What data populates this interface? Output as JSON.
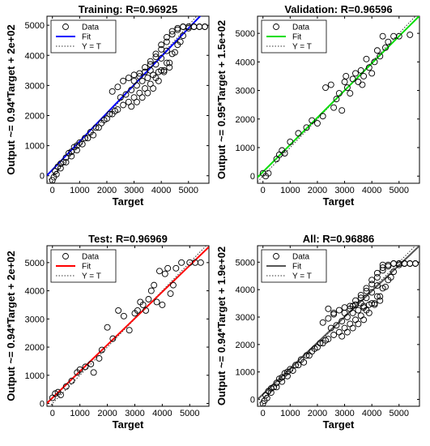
{
  "chart_data": [
    {
      "type": "scatter",
      "title": "Training: R=0.96925",
      "xlabel": "Target",
      "ylabel": "Output ~= 0.94*Target + 2e+02",
      "xlim": [
        -200,
        5750
      ],
      "ylim": [
        -250,
        5300
      ],
      "xticks": [
        0,
        1000,
        2000,
        3000,
        4000,
        5000
      ],
      "yticks": [
        0,
        1000,
        2000,
        3000,
        4000,
        5000
      ],
      "legend": {
        "position": "top-left",
        "entries": [
          "Data",
          "Fit",
          "Y = T"
        ]
      },
      "fit_color": "#0000ff",
      "fit": {
        "slope": 0.94,
        "intercept": 200
      },
      "x": [
        0,
        100,
        200,
        300,
        400,
        500,
        600,
        700,
        800,
        900,
        1000,
        1200,
        1400,
        1600,
        1800,
        2000,
        2200,
        2400,
        2600,
        2800,
        3000,
        3200,
        3400,
        3600,
        3800,
        4000,
        4200,
        4400,
        4600,
        4800,
        5000,
        5200,
        5400,
        5600,
        2200,
        2400,
        2600,
        2800,
        3000,
        3200,
        3400,
        3600,
        3800,
        4000,
        4200,
        2500,
        2700,
        2900,
        3100,
        3300,
        3500,
        3700,
        3900,
        4100,
        4300,
        2900,
        3100,
        3300,
        3500,
        3700,
        3900,
        4100,
        4300,
        4500,
        4700,
        3400,
        3600,
        3800,
        4000,
        4200,
        4400,
        4600,
        4800,
        5000,
        5200,
        1700,
        1900,
        2100,
        2300,
        1500,
        1300,
        1100,
        900,
        700,
        500,
        300,
        150,
        50,
        3000,
        3200,
        3400,
        3600,
        3800,
        4000,
        4200,
        4400,
        4600,
        4800,
        5000,
        5200,
        5400,
        5600
      ],
      "y": [
        -150,
        150,
        300,
        400,
        450,
        600,
        750,
        800,
        950,
        1000,
        1100,
        1250,
        1450,
        1600,
        1750,
        1900,
        2050,
        2200,
        2350,
        2450,
        2600,
        2750,
        2900,
        3050,
        3250,
        3500,
        3750,
        4050,
        4350,
        4650,
        4900,
        4950,
        4950,
        4950,
        2800,
        2950,
        3150,
        3250,
        3350,
        3400,
        3450,
        3500,
        3700,
        3900,
        4150,
        2600,
        2700,
        2850,
        3000,
        3150,
        3250,
        3350,
        3450,
        3500,
        3600,
        2300,
        2450,
        2600,
        2750,
        2900,
        3150,
        3450,
        3750,
        4100,
        4450,
        3600,
        3800,
        4050,
        4350,
        4600,
        4800,
        4900,
        4950,
        4950,
        4950,
        1600,
        1850,
        2050,
        2150,
        1350,
        1250,
        1050,
        850,
        650,
        450,
        250,
        50,
        -50,
        3150,
        3300,
        3450,
        3700,
        3950,
        4200,
        4450,
        4700,
        4850,
        4950,
        4950,
        4950,
        4950,
        4950
      ]
    },
    {
      "type": "scatter",
      "title": "Validation: R=0.96596",
      "xlabel": "Target",
      "ylabel": "Output ~= 0.95*Target + 1.5e+02",
      "xlim": [
        -200,
        5750
      ],
      "ylim": [
        -250,
        5600
      ],
      "xticks": [
        0,
        1000,
        2000,
        3000,
        4000,
        5000
      ],
      "yticks": [
        0,
        1000,
        2000,
        3000,
        4000,
        5000
      ],
      "legend": {
        "position": "top-left",
        "entries": [
          "Data",
          "Fit",
          "Y = T"
        ]
      },
      "fit_color": "#00dd00",
      "fit": {
        "slope": 0.95,
        "intercept": 150
      },
      "x": [
        0,
        100,
        200,
        500,
        600,
        700,
        800,
        1000,
        1300,
        1600,
        1800,
        2000,
        2200,
        2300,
        2500,
        2600,
        2700,
        2800,
        2900,
        3000,
        3050,
        3100,
        3200,
        3300,
        3400,
        3500,
        3600,
        3650,
        3700,
        3800,
        3900,
        4000,
        4100,
        4200,
        4300,
        4400,
        4500,
        4600,
        4800,
        5000,
        5400
      ],
      "y": [
        100,
        0,
        100,
        600,
        750,
        900,
        800,
        1200,
        1500,
        1700,
        1950,
        1850,
        2100,
        3100,
        3200,
        2400,
        2700,
        2900,
        2300,
        3300,
        3500,
        3100,
        2900,
        3400,
        3600,
        3300,
        3700,
        3200,
        3500,
        4100,
        3800,
        3600,
        4000,
        4400,
        4200,
        4900,
        4500,
        4700,
        4900,
        4900,
        4950
      ]
    },
    {
      "type": "scatter",
      "title": "Test: R=0.96969",
      "xlabel": "Target",
      "ylabel": "Output ~= 0.94*Target + 2e+02",
      "xlim": [
        -200,
        5700
      ],
      "ylim": [
        -100,
        5600
      ],
      "xticks": [
        0,
        1000,
        2000,
        3000,
        4000,
        5000
      ],
      "yticks": [
        0,
        1000,
        2000,
        3000,
        4000,
        5000
      ],
      "legend": {
        "position": "top-left",
        "entries": [
          "Data",
          "Fit",
          "Y = T"
        ]
      },
      "fit_color": "#ff0000",
      "fit": {
        "slope": 0.94,
        "intercept": 200
      },
      "x": [
        0,
        100,
        200,
        300,
        500,
        700,
        900,
        1000,
        1200,
        1400,
        1500,
        1700,
        1800,
        2000,
        2200,
        2400,
        2600,
        2800,
        3000,
        3100,
        3200,
        3300,
        3400,
        3500,
        3600,
        3700,
        3800,
        3900,
        4000,
        4100,
        4200,
        4300,
        4400,
        4500,
        4700,
        5000,
        5200,
        5400
      ],
      "y": [
        200,
        350,
        400,
        300,
        600,
        800,
        1100,
        1200,
        1300,
        1400,
        1100,
        1600,
        1900,
        2700,
        2300,
        3300,
        3100,
        2600,
        3200,
        3300,
        3600,
        3500,
        3300,
        3700,
        4000,
        4200,
        3600,
        4700,
        3500,
        4600,
        4800,
        3900,
        4200,
        4800,
        5000,
        5000,
        5000,
        5000
      ]
    },
    {
      "type": "scatter",
      "title": "All: R=0.96886",
      "xlabel": "Target",
      "ylabel": "Output ~= 0.94*Target + 1.9e+02",
      "xlim": [
        -200,
        5750
      ],
      "ylim": [
        -250,
        5600
      ],
      "xticks": [
        0,
        1000,
        2000,
        3000,
        4000,
        5000
      ],
      "yticks": [
        0,
        1000,
        2000,
        3000,
        4000,
        5000
      ],
      "legend": {
        "position": "top-left",
        "entries": [
          "Data",
          "Fit",
          "Y = T"
        ]
      },
      "fit_color": "#555555",
      "fit": {
        "slope": 0.94,
        "intercept": 190
      },
      "x": [
        0,
        100,
        200,
        300,
        400,
        500,
        600,
        700,
        800,
        900,
        1000,
        1200,
        1400,
        1600,
        1800,
        2000,
        2200,
        2400,
        2600,
        2800,
        3000,
        3200,
        3400,
        3600,
        3800,
        4000,
        4200,
        4400,
        4600,
        4800,
        5000,
        5200,
        5400,
        5600,
        2200,
        2400,
        2600,
        2800,
        3000,
        3200,
        3400,
        3600,
        3800,
        4000,
        4200,
        2500,
        2700,
        2900,
        3100,
        3300,
        3500,
        3700,
        3900,
        4100,
        4300,
        2900,
        3100,
        3300,
        3500,
        3700,
        3900,
        4100,
        4300,
        4500,
        4700,
        3400,
        3600,
        3800,
        4000,
        4200,
        4400,
        4600,
        4800,
        5000,
        5200,
        1700,
        1900,
        2100,
        2300,
        1500,
        1300,
        1100,
        900,
        700,
        500,
        300,
        150,
        50,
        3000,
        3200,
        3400,
        3600,
        3800,
        4000,
        4200,
        4400,
        4600,
        4800,
        5000,
        5200,
        5400,
        5600,
        2400,
        2600,
        3300,
        3700,
        4400
      ],
      "y": [
        -150,
        150,
        300,
        400,
        450,
        600,
        750,
        800,
        950,
        1000,
        1100,
        1250,
        1450,
        1600,
        1750,
        1900,
        2050,
        2200,
        2350,
        2450,
        2600,
        2750,
        2900,
        3050,
        3250,
        3500,
        3750,
        4050,
        4350,
        4650,
        4900,
        4950,
        4950,
        4950,
        2800,
        2950,
        3150,
        3250,
        3350,
        3400,
        3450,
        3500,
        3700,
        3900,
        4150,
        2600,
        2700,
        2850,
        3000,
        3150,
        3250,
        3350,
        3450,
        3500,
        3600,
        2300,
        2450,
        2600,
        2750,
        2900,
        3150,
        3450,
        3750,
        4100,
        4450,
        3600,
        3800,
        4050,
        4350,
        4600,
        4800,
        4900,
        4950,
        4950,
        4950,
        1600,
        1850,
        2050,
        2150,
        1350,
        1250,
        1050,
        850,
        650,
        450,
        250,
        50,
        -50,
        3150,
        3300,
        3450,
        3700,
        3950,
        4200,
        4450,
        4700,
        4850,
        4950,
        4950,
        4950,
        4950,
        4950,
        3300,
        3100,
        3400,
        3400,
        4900
      ]
    }
  ]
}
